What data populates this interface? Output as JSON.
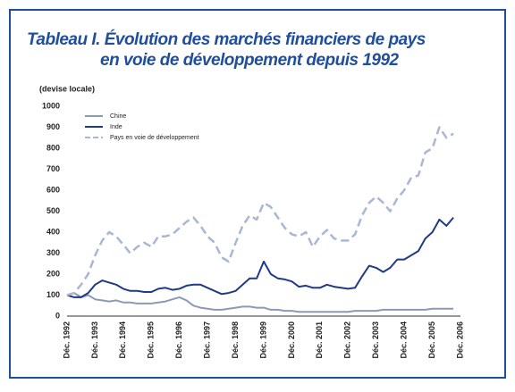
{
  "chart_data": {
    "type": "line",
    "title": [
      "Tableau I.  Évolution des marchés financiers de pays",
      "en voie de développement depuis 1992"
    ],
    "y_label": "(devise locale)",
    "categories": [
      "Déc. 1992",
      null,
      null,
      null,
      "Déc. 1993",
      null,
      null,
      null,
      "Déc. 1994",
      null,
      null,
      null,
      "Déc. 1995",
      null,
      null,
      null,
      "Déc. 1996",
      null,
      null,
      null,
      "Déc. 1997",
      null,
      null,
      null,
      "Déc. 1998",
      null,
      null,
      null,
      "Déc. 1999",
      null,
      null,
      null,
      "Déc. 2000",
      null,
      null,
      null,
      "Déc. 2001",
      null,
      null,
      null,
      "Déc. 2002",
      null,
      null,
      null,
      "Déc. 2003",
      null,
      null,
      null,
      "Déc. 2004",
      null,
      null,
      null,
      "Déc. 2005",
      null,
      null,
      null,
      "Déc. 2006"
    ],
    "series": [
      {
        "name": "Chine",
        "color": "#8c9ab6",
        "dashed": false,
        "values": [
          100,
          110,
          90,
          100,
          80,
          75,
          70,
          75,
          65,
          65,
          60,
          60,
          60,
          65,
          70,
          80,
          90,
          75,
          50,
          40,
          35,
          30,
          30,
          35,
          40,
          45,
          45,
          40,
          40,
          30,
          30,
          25,
          25,
          20,
          20,
          20,
          20,
          20,
          20,
          20,
          20,
          25,
          25,
          25,
          25,
          30,
          30,
          30,
          30,
          30,
          30,
          30,
          35,
          35,
          35,
          35,
          null
        ]
      },
      {
        "name": "Inde",
        "color": "#1f3a86",
        "dashed": false,
        "values": [
          100,
          90,
          90,
          110,
          150,
          170,
          160,
          150,
          130,
          120,
          120,
          115,
          115,
          130,
          135,
          125,
          130,
          145,
          150,
          150,
          135,
          120,
          105,
          110,
          120,
          150,
          180,
          180,
          260,
          200,
          180,
          175,
          165,
          140,
          145,
          135,
          135,
          150,
          140,
          135,
          130,
          135,
          190,
          240,
          230,
          210,
          230,
          270,
          270,
          290,
          310,
          370,
          400,
          460,
          430,
          470,
          null
        ]
      },
      {
        "name": "Pays en voie de développement",
        "color": "#a9b6d6",
        "dashed": true,
        "values": [
          100,
          110,
          150,
          200,
          290,
          360,
          400,
          380,
          340,
          300,
          330,
          350,
          330,
          380,
          380,
          390,
          420,
          450,
          470,
          430,
          380,
          350,
          280,
          260,
          350,
          430,
          480,
          460,
          540,
          520,
          470,
          420,
          390,
          380,
          400,
          330,
          380,
          410,
          370,
          360,
          360,
          390,
          480,
          540,
          570,
          540,
          500,
          560,
          600,
          660,
          670,
          780,
          800,
          900,
          850,
          870,
          null
        ]
      }
    ],
    "ylim": [
      0,
      1000
    ],
    "yticks": [
      0,
      100,
      200,
      300,
      400,
      500,
      600,
      700,
      800,
      900,
      1000
    ],
    "grid": false,
    "legend": "upper left"
  }
}
